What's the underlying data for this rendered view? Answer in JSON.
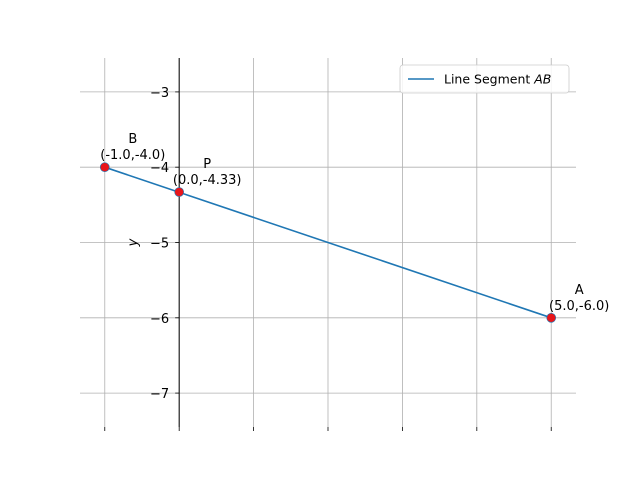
{
  "chart_data": {
    "type": "line",
    "title": "",
    "xlabel": "",
    "ylabel": "y",
    "xlim": [
      -1.333,
      5.333
    ],
    "ylim": [
      -7.45,
      -2.55
    ],
    "x_gridlines": [
      -1,
      0,
      1,
      2,
      3,
      4,
      5
    ],
    "y_ticks": [
      -7,
      -6,
      -5,
      -4,
      -3
    ],
    "y_tick_labels": [
      "−7",
      "−6",
      "−5",
      "−4",
      "−3"
    ],
    "x_tick_labels_shown": false,
    "grid": true,
    "series": [
      {
        "name": "Line Segment AB",
        "color": "#1f77b4",
        "x": [
          -1.0,
          5.0
        ],
        "y": [
          -4.0,
          -6.0
        ]
      }
    ],
    "points": [
      {
        "name": "A",
        "label": "A",
        "coord_label": "(5.0,-6.0)",
        "x": 5.0,
        "y": -6.0
      },
      {
        "name": "B",
        "label": "B",
        "coord_label": "(-1.0,-4.0)",
        "x": -1.0,
        "y": -4.0
      },
      {
        "name": "P",
        "label": "P",
        "coord_label": "(0.0,-4.33)",
        "x": 0.0,
        "y": -4.33
      }
    ],
    "point_color": "#e8161b",
    "legend": {
      "position": "top-right",
      "label_prefix": "Line Segment ",
      "label_italic": "AB"
    }
  }
}
